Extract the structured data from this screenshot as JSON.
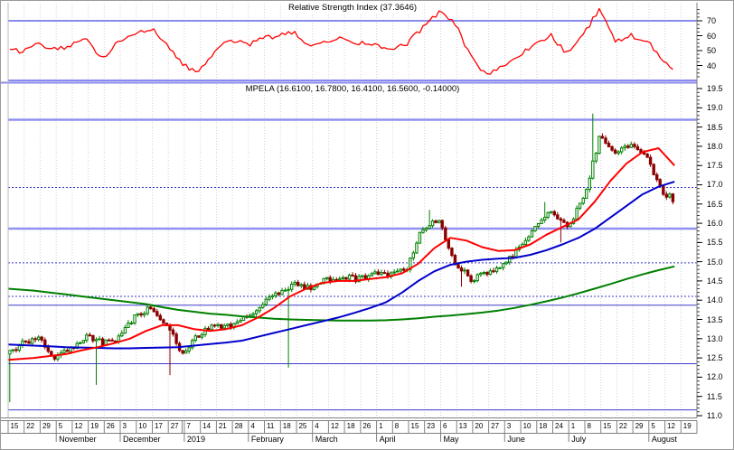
{
  "colors": {
    "background": "#FFFFFF",
    "grid": "#D0D0D0",
    "axis_text": "#000000",
    "border": "#808080",
    "rsi_line": "#FF0000",
    "level_blue": "#8A8AEE",
    "hline_blue": "#3A3ACC",
    "hline_light_blue": "#9090EE",
    "up_candle": "#008000",
    "down_candle": "#8B0000",
    "ma_short": "#FF0000",
    "ma_medium": "#0000CC",
    "ma_long": "#008000"
  },
  "chart_data": [
    {
      "type": "line",
      "name": "rsi-indicator",
      "title": "Relative Strength Index (37.3646)",
      "current_value": 37.3646,
      "axis_ticks": [
        70,
        60,
        50,
        40
      ],
      "levels": [
        70,
        30
      ],
      "y_range": [
        30,
        82
      ],
      "legend_position": "top-center",
      "grid": "vertical-dotted",
      "weekly_values": [
        50,
        54,
        51,
        53,
        57,
        45,
        56,
        62,
        65,
        55,
        40,
        36,
        50,
        57,
        54,
        58,
        60,
        62,
        52,
        56,
        58,
        55,
        54,
        50,
        55,
        65,
        76,
        68,
        46,
        33,
        39,
        46,
        55,
        60,
        48,
        60,
        78,
        56,
        60,
        57,
        42,
        37.36,
        null
      ]
    },
    {
      "type": "candlestick",
      "name": "price-candles",
      "title": "MPELA (16.6100, 16.7800, 16.4100, 16.5600, -0.14000)",
      "symbol": "MPELA",
      "open": 16.61,
      "high": 16.78,
      "low": 16.41,
      "close": 16.56,
      "change": -0.14,
      "axis_ticks": [
        19.5,
        19.0,
        18.5,
        18.0,
        17.5,
        17.0,
        16.5,
        16.0,
        15.5,
        15.0,
        14.5,
        14.0,
        13.5,
        13.0,
        12.5,
        12.0,
        11.5,
        11.0
      ],
      "y_range": [
        10.85,
        19.6
      ],
      "grid": "vertical-dotted",
      "hlines": [
        {
          "value": 18.69,
          "style": "solid",
          "thick": true
        },
        {
          "value": 16.93,
          "style": "dotted",
          "thick": false
        },
        {
          "value": 15.86,
          "style": "solid",
          "thick": true
        },
        {
          "value": 14.97,
          "style": "dotted",
          "thick": false
        },
        {
          "value": 14.1,
          "style": "dotted",
          "thick": false
        },
        {
          "value": 13.87,
          "style": "solid",
          "thick": false
        },
        {
          "value": 12.35,
          "style": "solid",
          "thick": false
        },
        {
          "value": 11.15,
          "style": "solid",
          "thick": false
        }
      ],
      "start_price": 12.6,
      "weekly_closes": [
        12.9,
        13.0,
        12.55,
        12.75,
        13.1,
        12.9,
        13.0,
        13.55,
        13.8,
        13.35,
        12.6,
        13.1,
        13.35,
        13.3,
        13.6,
        13.9,
        14.2,
        14.45,
        14.3,
        14.55,
        14.6,
        14.55,
        14.7,
        14.65,
        14.85,
        15.9,
        16.05,
        14.95,
        14.55,
        14.7,
        14.9,
        15.35,
        15.9,
        16.35,
        15.9,
        16.6,
        18.2,
        17.9,
        18.0,
        17.7,
        16.8,
        16.56,
        null
      ],
      "events": [
        {
          "week": 0,
          "day": 0,
          "low": 11.35
        },
        {
          "week": 5,
          "day": 2,
          "low": 11.8
        },
        {
          "week": 10,
          "day": 0,
          "low": 12.05
        },
        {
          "week": 17,
          "day": 2,
          "low": 12.25
        },
        {
          "week": 26,
          "day": 1,
          "high": 16.35
        },
        {
          "week": 28,
          "day": 1,
          "low": 14.35
        },
        {
          "week": 33,
          "day": 2,
          "high": 16.55
        },
        {
          "week": 34,
          "day": 2,
          "low": 15.5
        },
        {
          "week": 36,
          "day": 2,
          "high": 18.85
        }
      ],
      "moving_averages": [
        {
          "name": "ma-short",
          "color": "#FF0000",
          "weekly_values": [
            12.45,
            12.5,
            12.55,
            12.6,
            12.7,
            12.78,
            12.88,
            13.0,
            13.2,
            13.35,
            13.35,
            13.25,
            13.2,
            13.25,
            13.35,
            13.55,
            13.8,
            14.1,
            14.3,
            14.45,
            14.5,
            14.5,
            14.55,
            14.6,
            14.7,
            14.95,
            15.35,
            15.62,
            15.55,
            15.38,
            15.28,
            15.3,
            15.45,
            15.7,
            15.9,
            16.1,
            16.55,
            17.1,
            17.55,
            17.85,
            17.95,
            17.5,
            null
          ]
        },
        {
          "name": "ma-medium",
          "color": "#0000CC",
          "weekly_values": [
            12.85,
            12.82,
            12.8,
            12.78,
            12.77,
            12.76,
            12.75,
            12.75,
            12.76,
            12.77,
            12.78,
            12.82,
            12.86,
            12.9,
            12.95,
            13.05,
            13.15,
            13.25,
            13.35,
            13.45,
            13.55,
            13.67,
            13.8,
            13.95,
            14.2,
            14.5,
            14.75,
            14.92,
            15.0,
            15.05,
            15.08,
            15.1,
            15.18,
            15.3,
            15.45,
            15.62,
            15.85,
            16.15,
            16.45,
            16.75,
            16.95,
            17.08,
            null
          ]
        },
        {
          "name": "ma-long",
          "color": "#008000",
          "weekly_values": [
            14.3,
            14.25,
            14.2,
            14.15,
            14.1,
            14.05,
            14.0,
            13.95,
            13.9,
            13.82,
            13.75,
            13.7,
            13.65,
            13.62,
            13.58,
            13.55,
            13.52,
            13.5,
            13.49,
            13.48,
            13.47,
            13.47,
            13.47,
            13.48,
            13.5,
            13.53,
            13.57,
            13.6,
            13.64,
            13.68,
            13.73,
            13.8,
            13.88,
            13.97,
            14.07,
            14.18,
            14.3,
            14.42,
            14.55,
            14.67,
            14.78,
            14.88,
            null
          ]
        }
      ]
    }
  ],
  "x_axis": {
    "week_labels": [
      "15",
      "22",
      "29",
      "5",
      "12",
      "19",
      "26",
      "3",
      "10",
      "17",
      "27",
      "7",
      "14",
      "21",
      "28",
      "4",
      "11",
      "18",
      "25",
      "4",
      "12",
      "18",
      "26",
      "1",
      "8",
      "15",
      "23",
      "6",
      "13",
      "20",
      "27",
      "3",
      "10",
      "18",
      "24",
      "1",
      "8",
      "15",
      "22",
      "29",
      "5",
      "12",
      "19"
    ],
    "months": [
      {
        "label": "November",
        "start_week": 3
      },
      {
        "label": "December",
        "start_week": 7
      },
      {
        "label": "2019",
        "start_week": 11
      },
      {
        "label": "February",
        "start_week": 15
      },
      {
        "label": "March",
        "start_week": 19
      },
      {
        "label": "April",
        "start_week": 23
      },
      {
        "label": "May",
        "start_week": 27
      },
      {
        "label": "June",
        "start_week": 31
      },
      {
        "label": "July",
        "start_week": 35
      },
      {
        "label": "August",
        "start_week": 40
      }
    ],
    "year_break_week": 11
  }
}
